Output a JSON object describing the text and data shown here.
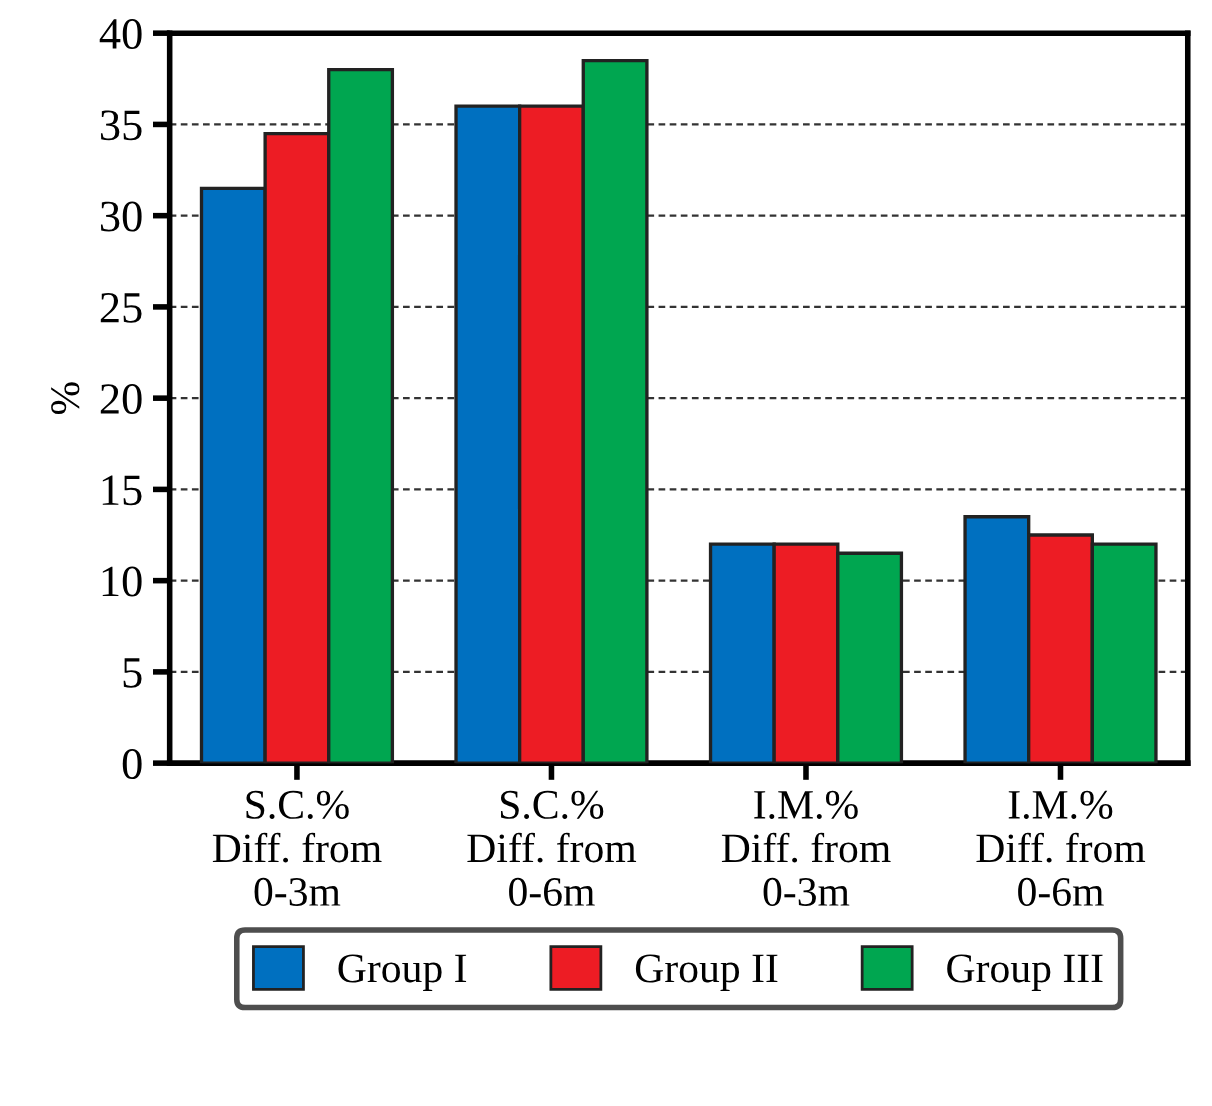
{
  "chart_data": {
    "type": "bar",
    "ylabel": "%",
    "categories": [
      "S.C.%\nDiff. from\n0-3m",
      "S.C.%\nDiff. from\n0-6m",
      "I.M.%\nDiff. from\n0-3m",
      "I.M.%\nDiff. from\n0-6m"
    ],
    "series": [
      {
        "name": "Group I",
        "color": "#0070c0",
        "values": [
          31.5,
          36,
          12,
          13.5
        ]
      },
      {
        "name": "Group II",
        "color": "#ed1c24",
        "values": [
          34.5,
          36,
          12,
          12.5
        ]
      },
      {
        "name": "Group III",
        "color": "#00a650",
        "values": [
          38,
          38.5,
          11.5,
          12
        ]
      }
    ],
    "ylim": [
      0,
      40
    ],
    "yticks": [
      0,
      5,
      10,
      15,
      20,
      25,
      30,
      35,
      40
    ],
    "grid": "y",
    "legend": "bottom"
  }
}
